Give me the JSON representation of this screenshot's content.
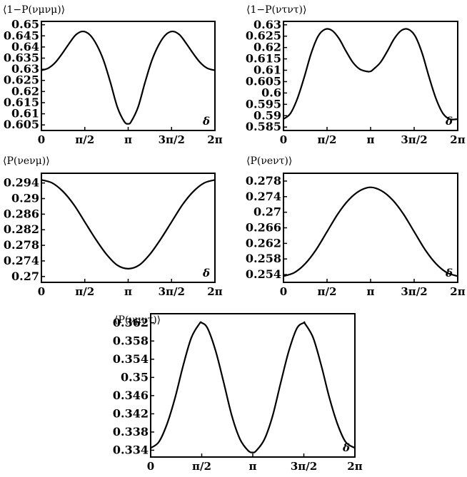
{
  "chart_data": [
    {
      "type": "line",
      "title": "⟨1−P(νμνμ)⟩",
      "annotation": "δ",
      "xlim": [
        0,
        6.2832
      ],
      "ylim": [
        0.6025,
        0.6515
      ],
      "x_ticks": [
        0,
        1.5708,
        3.1416,
        4.7124,
        6.2832
      ],
      "x_tick_labels": [
        "0",
        "π/2",
        "π",
        "3π/2",
        "2π"
      ],
      "y_ticks": [
        0.605,
        0.61,
        0.615,
        0.62,
        0.625,
        0.63,
        0.635,
        0.64,
        0.645,
        0.65
      ],
      "y_tick_labels": [
        "0.605",
        "0.61",
        "0.615",
        "0.62",
        "0.625",
        "0.63",
        "0.635",
        "0.64",
        "0.645",
        "0.65"
      ],
      "series": [
        {
          "x": [
            0,
            0.25,
            0.5,
            0.75,
            1.0,
            1.25,
            1.5,
            1.75,
            2.0,
            2.25,
            2.5,
            2.75,
            3.0,
            3.1416,
            3.25,
            3.5,
            3.75,
            4.0,
            4.25,
            4.5,
            4.75,
            5.0,
            5.25,
            5.5,
            5.75,
            6.0,
            6.2832
          ],
          "y": [
            0.6295,
            0.6305,
            0.633,
            0.637,
            0.6415,
            0.6455,
            0.647,
            0.6455,
            0.641,
            0.634,
            0.624,
            0.613,
            0.6065,
            0.6055,
            0.6065,
            0.613,
            0.624,
            0.634,
            0.641,
            0.6455,
            0.647,
            0.6455,
            0.6415,
            0.637,
            0.633,
            0.6305,
            0.6295
          ]
        }
      ]
    },
    {
      "type": "line",
      "title": "⟨1−P(ντντ)⟩",
      "annotation": "δ",
      "xlim": [
        0,
        6.2832
      ],
      "ylim": [
        0.5835,
        0.6315
      ],
      "x_ticks": [
        0,
        1.5708,
        3.1416,
        4.7124,
        6.2832
      ],
      "x_tick_labels": [
        "0",
        "π/2",
        "π",
        "3π/2",
        "2π"
      ],
      "y_ticks": [
        0.585,
        0.59,
        0.595,
        0.6,
        0.605,
        0.61,
        0.615,
        0.62,
        0.625,
        0.63
      ],
      "y_tick_labels": [
        "0.585",
        "0.59",
        "0.595",
        "0.6",
        "0.605",
        "0.61",
        "0.615",
        "0.62",
        "0.625",
        "0.63"
      ],
      "series": [
        {
          "x": [
            0,
            0.25,
            0.5,
            0.75,
            1.0,
            1.25,
            1.5,
            1.75,
            2.0,
            2.25,
            2.5,
            2.75,
            3.0,
            3.1416,
            3.25,
            3.5,
            3.75,
            4.0,
            4.25,
            4.5,
            4.75,
            5.0,
            5.25,
            5.5,
            5.75,
            6.0,
            6.2832
          ],
          "y": [
            0.5885,
            0.591,
            0.5975,
            0.607,
            0.6175,
            0.625,
            0.628,
            0.6275,
            0.624,
            0.6185,
            0.6135,
            0.6105,
            0.6095,
            0.6095,
            0.6105,
            0.6135,
            0.6185,
            0.624,
            0.6275,
            0.628,
            0.625,
            0.6175,
            0.607,
            0.5975,
            0.591,
            0.5885,
            0.5885
          ]
        }
      ]
    },
    {
      "type": "line",
      "title": "⟨P(νeνμ)⟩",
      "annotation": "δ",
      "xlim": [
        0,
        6.2832
      ],
      "ylim": [
        0.2685,
        0.2965
      ],
      "x_ticks": [
        0,
        1.5708,
        3.1416,
        4.7124,
        6.2832
      ],
      "x_tick_labels": [
        "0",
        "π/2",
        "π",
        "3π/2",
        "2π"
      ],
      "y_ticks": [
        0.27,
        0.274,
        0.278,
        0.282,
        0.286,
        0.29,
        0.294
      ],
      "y_tick_labels": [
        "0.27",
        "0.274",
        "0.278",
        "0.282",
        "0.286",
        "0.29",
        "0.294"
      ],
      "series": [
        {
          "x": [
            0,
            0.3927,
            0.7854,
            1.1781,
            1.5708,
            1.9635,
            2.3562,
            2.7489,
            3.1416,
            3.5343,
            3.927,
            4.3197,
            4.7124,
            5.1051,
            5.4978,
            5.8905,
            6.2832
          ],
          "y": [
            0.2948,
            0.294,
            0.2918,
            0.2884,
            0.284,
            0.2796,
            0.2757,
            0.2729,
            0.272,
            0.2729,
            0.2757,
            0.2796,
            0.284,
            0.2884,
            0.2918,
            0.294,
            0.2948
          ]
        }
      ]
    },
    {
      "type": "line",
      "title": "⟨P(νeντ)⟩",
      "annotation": "δ",
      "xlim": [
        0,
        6.2832
      ],
      "ylim": [
        0.252,
        0.28
      ],
      "x_ticks": [
        0,
        1.5708,
        3.1416,
        4.7124,
        6.2832
      ],
      "x_tick_labels": [
        "0",
        "π/2",
        "π",
        "3π/2",
        "2π"
      ],
      "y_ticks": [
        0.254,
        0.258,
        0.262,
        0.266,
        0.27,
        0.274,
        0.278
      ],
      "y_tick_labels": [
        "0.254",
        "0.258",
        "0.262",
        "0.266",
        "0.27",
        "0.274",
        "0.278"
      ],
      "series": [
        {
          "x": [
            0,
            0.3927,
            0.7854,
            1.1781,
            1.5708,
            1.9635,
            2.3562,
            2.7489,
            3.1416,
            3.5343,
            3.927,
            4.3197,
            4.7124,
            5.1051,
            5.4978,
            5.8905,
            6.2832
          ],
          "y": [
            0.2536,
            0.2545,
            0.2568,
            0.2604,
            0.265,
            0.2696,
            0.2732,
            0.2755,
            0.2764,
            0.2755,
            0.2732,
            0.2696,
            0.265,
            0.2604,
            0.2568,
            0.2545,
            0.2536
          ]
        }
      ]
    },
    {
      "type": "line",
      "title": "⟨P(νμντ)⟩",
      "annotation": "δ",
      "xlim": [
        0,
        6.2832
      ],
      "ylim": [
        0.3325,
        0.364
      ],
      "x_ticks": [
        0,
        1.5708,
        3.1416,
        4.7124,
        6.2832
      ],
      "x_tick_labels": [
        "0",
        "π/2",
        "π",
        "3π/2",
        "2π"
      ],
      "y_ticks": [
        0.334,
        0.338,
        0.342,
        0.346,
        0.35,
        0.354,
        0.358,
        0.362
      ],
      "y_tick_labels": [
        "0.334",
        "0.338",
        "0.342",
        "0.346",
        "0.35",
        "0.354",
        "0.358",
        "0.362"
      ],
      "series": [
        {
          "x": [
            0,
            0.25,
            0.5,
            0.75,
            1.0,
            1.25,
            1.5,
            1.5708,
            1.75,
            2.0,
            2.25,
            2.5,
            2.75,
            3.0,
            3.1416,
            3.25,
            3.5,
            3.75,
            4.0,
            4.25,
            4.5,
            4.7124,
            4.75,
            5.0,
            5.25,
            5.5,
            5.75,
            6.0,
            6.2832
          ],
          "y": [
            0.3345,
            0.3358,
            0.3397,
            0.3455,
            0.3526,
            0.3587,
            0.3618,
            0.362,
            0.3608,
            0.3558,
            0.3488,
            0.3415,
            0.3364,
            0.3339,
            0.3335,
            0.3339,
            0.3364,
            0.3415,
            0.3488,
            0.3558,
            0.3608,
            0.362,
            0.3618,
            0.3587,
            0.3526,
            0.3455,
            0.3397,
            0.3358,
            0.3345
          ]
        }
      ]
    }
  ]
}
